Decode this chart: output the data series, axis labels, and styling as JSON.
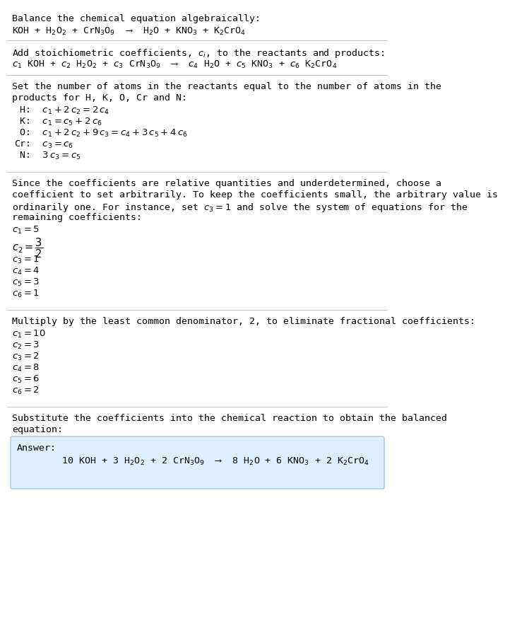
{
  "bg_color": "#ffffff",
  "text_color": "#000000",
  "font_family": "monospace",
  "font_size": 9.5,
  "font_size_eq": 9.5,
  "section1_title": "Balance the chemical equation algebraically:",
  "section1_eq": "KOH + H$_2$O$_2$ + CrN$_3$O$_9$  ⟶  H$_2$O + KNO$_3$ + K$_2$CrO$_4$",
  "section2_title": "Add stoichiometric coefficients, $c_i$, to the reactants and products:",
  "section2_eq": "$c_1$ KOH + $c_2$ H$_2$O$_2$ + $c_3$ CrN$_3$O$_9$  ⟶  $c_4$ H$_2$O + $c_5$ KNO$_3$ + $c_6$ K$_2$CrO$_4$",
  "section3_title_l1": "Set the number of atoms in the reactants equal to the number of atoms in the",
  "section3_title_l2": "products for H, K, O, Cr and N:",
  "section3_lines": [
    " H:  $c_1 + 2\\,c_2 = 2\\,c_4$",
    " K:  $c_1 = c_5 + 2\\,c_6$",
    " O:  $c_1 + 2\\,c_2 + 9\\,c_3 = c_4 + 3\\,c_5 + 4\\,c_6$",
    "Cr:  $c_3 = c_6$",
    " N:  $3\\,c_3 = c_5$"
  ],
  "section4_title_l1": "Since the coefficients are relative quantities and underdetermined, choose a",
  "section4_title_l2": "coefficient to set arbitrarily. To keep the coefficients small, the arbitrary value is",
  "section4_title_l3": "ordinarily one. For instance, set $c_3 = 1$ and solve the system of equations for the",
  "section4_title_l4": "remaining coefficients:",
  "section4_lines_before_frac": [
    "$c_1 = 5$"
  ],
  "section4_frac": "$c_2 = \\dfrac{3}{2}$",
  "section4_lines_after_frac": [
    "$c_3 = 1$",
    "$c_4 = 4$",
    "$c_5 = 3$",
    "$c_6 = 1$"
  ],
  "section5_title": "Multiply by the least common denominator, 2, to eliminate fractional coefficients:",
  "section5_lines": [
    "$c_1 = 10$",
    "$c_2 = 3$",
    "$c_3 = 2$",
    "$c_4 = 8$",
    "$c_5 = 6$",
    "$c_6 = 2$"
  ],
  "section6_title_l1": "Substitute the coefficients into the chemical reaction to obtain the balanced",
  "section6_title_l2": "equation:",
  "answer_label": "Answer:",
  "answer_eq": "        10 KOH + 3 H$_2$O$_2$ + 2 CrN$_3$O$_9$  ⟶  8 H$_2$O + 6 KNO$_3$ + 2 K$_2$CrO$_4$",
  "answer_box_facecolor": "#ddeeff",
  "answer_box_edgecolor": "#99bbdd",
  "hline_color": "#bbbbbb"
}
